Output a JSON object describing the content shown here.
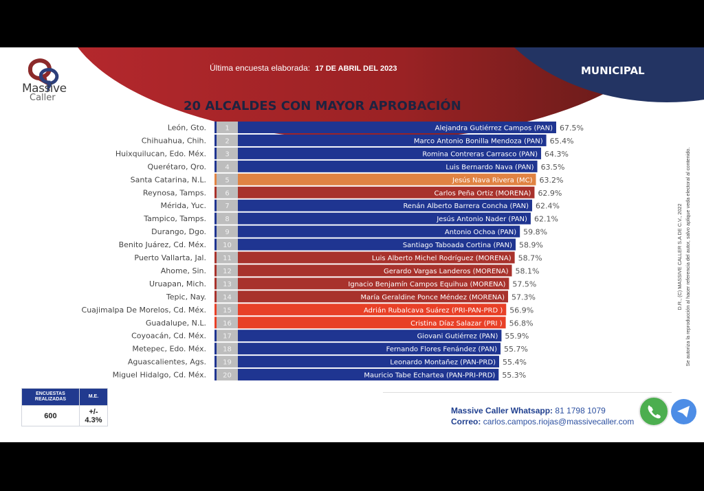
{
  "header": {
    "brand_line1": "Massive",
    "brand_line2": "Caller",
    "survey_label": "Última encuesta elaborada:",
    "survey_date": "17 DE ABRIL DEL 2023",
    "section": "MUNICIPAL"
  },
  "colors": {
    "PAN": "#1f3591",
    "MC": "#e08343",
    "MORENA": "#a8322c",
    "PRI": "#e84027",
    "rank_box": "#bdbdbd",
    "header_red": "#a62529",
    "header_blue": "#233463"
  },
  "chart_data": {
    "type": "bar",
    "orientation": "horizontal",
    "title": "20 ALCALDES CON MAYOR APROBACIÓN",
    "xlabel": "",
    "ylabel": "",
    "unit": "%",
    "grid": false,
    "categories": [
      "León, Gto.",
      "Chihuahua, Chih.",
      "Huixquilucan, Edo. Méx.",
      "Querétaro, Qro.",
      "Santa Catarina, N.L.",
      "Reynosa, Tamps.",
      "Mérida, Yuc.",
      "Tampico, Tamps.",
      "Durango, Dgo.",
      "Benito Juárez, Cd. Méx.",
      "Puerto Vallarta, Jal.",
      "Ahome, Sin.",
      "Uruapan, Mich.",
      "Tepic, Nay.",
      "Cuajimalpa De Morelos, Cd. Méx.",
      "Guadalupe, N.L.",
      "Coyoacán, Cd. Méx.",
      "Metepec, Edo. Méx.",
      "Aguascalientes, Ags.",
      "Miguel Hidalgo, Cd. Méx."
    ],
    "ranks": [
      "1",
      "2",
      "3",
      "4",
      "5",
      "6",
      "7",
      "8",
      "9",
      "10",
      "11",
      "12",
      "13",
      "14",
      "15",
      "16",
      "17",
      "18",
      "19",
      "20"
    ],
    "names": [
      "Alejandra Gutiérrez Campos (PAN)",
      "Marco Antonio Bonilla Mendoza (PAN)",
      "Romina Contreras Carrasco  (PAN)",
      "Luis Bernardo Nava (PAN)",
      "Jesús Nava Rivera (MC)",
      "Carlos Peña Ortiz (MORENA)",
      "Renán Alberto Barrera Concha (PAN)",
      "Jesús Antonio Nader  (PAN)",
      "Antonio Ochoa (PAN)",
      "Santiago Taboada Cortina (PAN)",
      "Luis Alberto Michel Rodríguez (MORENA)",
      "Gerardo Vargas Landeros (MORENA)",
      "Ignacio Benjamín Campos Equihua (MORENA)",
      "María Geraldine Ponce Méndez (MORENA)",
      "Adrián Rubalcava Suárez (PRI-PAN-PRD )",
      "Cristina Díaz Salazar (PRI )",
      "Giovani Gutiérrez (PAN)",
      "Fernando Flores Fenández (PAN)",
      "Leonardo Montañez (PAN-PRD)",
      "Mauricio Tabe Echartea (PAN-PRI-PRD)"
    ],
    "parties": [
      "PAN",
      "PAN",
      "PAN",
      "PAN",
      "MC",
      "MORENA",
      "PAN",
      "PAN",
      "PAN",
      "PAN",
      "MORENA",
      "MORENA",
      "MORENA",
      "MORENA",
      "PRI",
      "PRI",
      "PAN",
      "PAN",
      "PAN",
      "PAN"
    ],
    "values": [
      67.5,
      65.4,
      64.3,
      63.5,
      63.2,
      62.9,
      62.4,
      62.1,
      59.8,
      58.9,
      58.7,
      58.1,
      57.5,
      57.3,
      56.9,
      56.8,
      55.9,
      55.7,
      55.4,
      55.3
    ],
    "value_labels": [
      "67.5%",
      "65.4%",
      "64.3%",
      "63.5%",
      "63.2%",
      "62.9%",
      "62.4%",
      "62.1%",
      "59.8%",
      "58.9%",
      "58.7%",
      "58.1%",
      "57.5%",
      "57.3%",
      "56.9%",
      "56.8%",
      "55.9%",
      "55.7%",
      "55.4%",
      "55.3%"
    ],
    "xlim": [
      0,
      67.5
    ]
  },
  "rights": {
    "line1": "D.R., (C) MASSIVE CALLER S.A DE C.V., 2022",
    "line2": "Se autoriza la reproducción al hacer referencia del autor, salvo aplique veda electoral al contenido."
  },
  "stats": {
    "col1_header": "ENCUESTAS REALIZADAS",
    "col2_header": "M.E.",
    "surveys": "600",
    "margin_error": "+/- 4.3%"
  },
  "contact": {
    "whatsapp_label": "Massive Caller Whatsapp:",
    "whatsapp_number": "81 1798  1079",
    "email_label": "Correo:",
    "email": "carlos.campos.riojas@massivecaller.com"
  }
}
